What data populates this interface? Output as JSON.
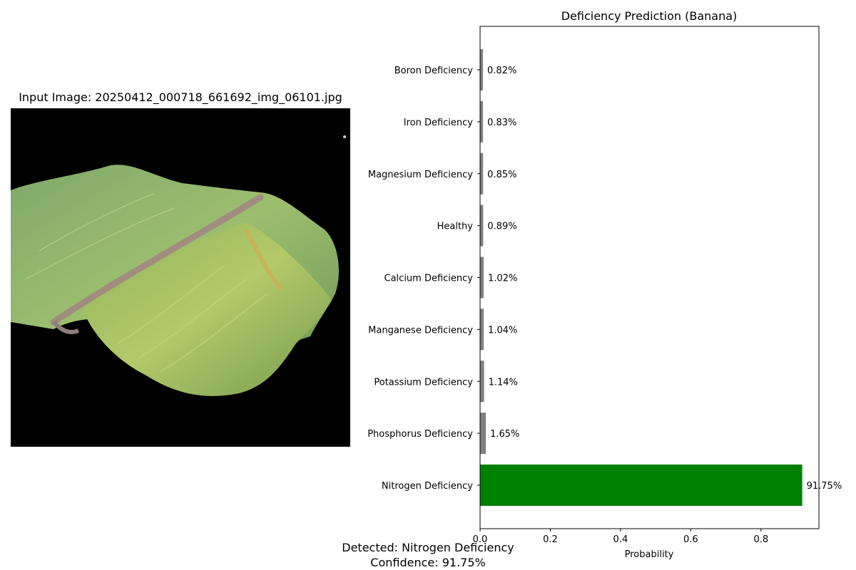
{
  "image_panel": {
    "title": "Input Image: 20250412_000718_661692_img_06101.jpg",
    "image_icon": "banana-leaf-image"
  },
  "summary": {
    "detected": "Detected: Nitrogen Deficiency",
    "confidence": "Confidence: 91.75%"
  },
  "chart_data": {
    "type": "bar",
    "orientation": "horizontal",
    "title": "Deficiency Prediction (Banana)",
    "xlabel": "Probability",
    "ylabel": "",
    "xlim": [
      0,
      0.965
    ],
    "xticks": [
      0.0,
      0.2,
      0.4,
      0.6,
      0.8
    ],
    "xtick_labels": [
      "0.0",
      "0.2",
      "0.4",
      "0.6",
      "0.8"
    ],
    "grid": false,
    "categories": [
      "Nitrogen Deficiency",
      "Phosphorus Deficiency",
      "Potassium Deficiency",
      "Manganese Deficiency",
      "Calcium Deficiency",
      "Healthy",
      "Magnesium Deficiency",
      "Iron Deficiency",
      "Boron Deficiency"
    ],
    "values": [
      0.9175,
      0.0165,
      0.0114,
      0.0104,
      0.0102,
      0.0089,
      0.0085,
      0.0083,
      0.0082
    ],
    "data_labels": [
      "91.75%",
      "1.65%",
      "1.14%",
      "1.04%",
      "1.02%",
      "0.89%",
      "0.85%",
      "0.83%",
      "0.82%"
    ],
    "highlight_color": "#008000",
    "bar_color": "#808080"
  }
}
